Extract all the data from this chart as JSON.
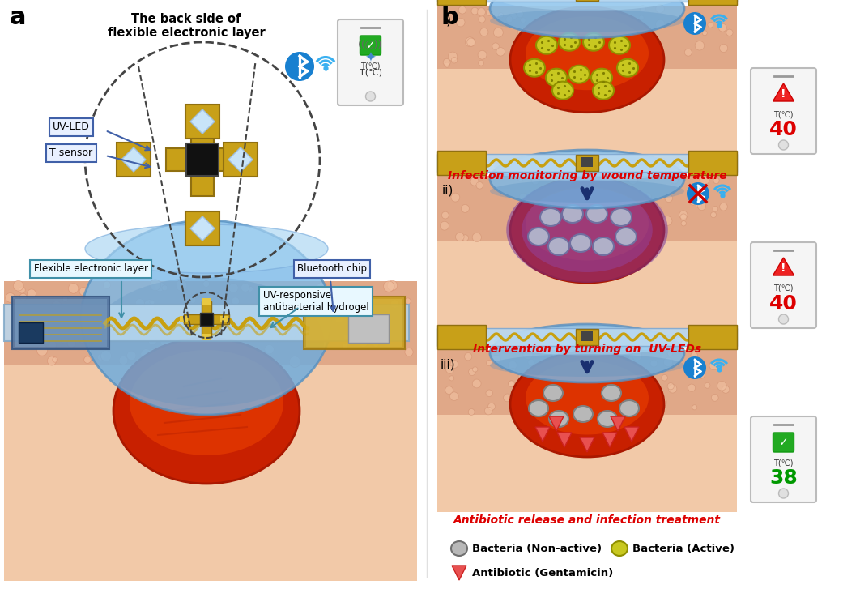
{
  "fig_width": 10.41,
  "fig_height": 7.27,
  "bg_color": "#ffffff",
  "panel_a_label": "a",
  "panel_b_label": "b",
  "title_text": "The back side of\nflexible electronic layer",
  "uvled_label": "UV-LED",
  "tsensor_label": "T sensor",
  "flex_layer_label": "Flexible electronic layer",
  "bt_chip_label": "Bluetooth chip",
  "hydrogel_label": "UV-responsive\nantibacterial hydrogel",
  "caption_i": "Infection monitoring by wound temperature",
  "caption_ii": "Intervention by turning on  UV-LEDs",
  "caption_iii": "Antibiotic release and infection treatment",
  "legend_bacteria_nonactive": "Bacteria (Non-active)",
  "legend_bacteria_active": "Bacteria (Active)",
  "legend_antibiotic": "Antibiotic (Gentamicin)",
  "phone_temp_i": "40",
  "phone_temp_ii": "40",
  "phone_temp_iii": "38",
  "phone_temp_color_i": "#dd0000",
  "phone_temp_color_ii": "#dd0000",
  "phone_temp_color_iii": "#009900",
  "box_border_color_blue": "#4060a8",
  "box_bg_color": "#e8f0ff",
  "box_border_color_teal": "#4090a8",
  "arrow_color": "#1a4080",
  "arrow_color_b": "#1a3070"
}
